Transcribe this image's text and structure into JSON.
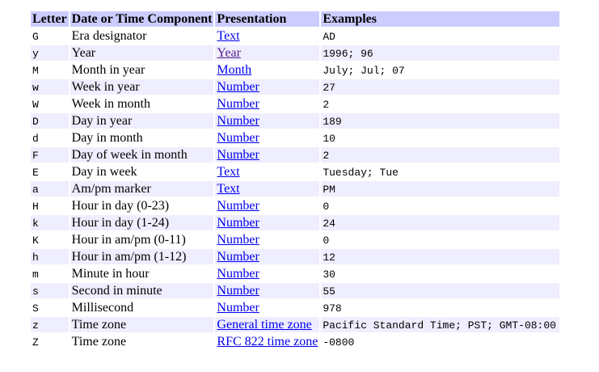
{
  "colors": {
    "header_bg": "#ccccff",
    "stripe_bg": "#eeeeff",
    "link": "#0000ee",
    "visited_link": "#551a8b",
    "text": "#000000",
    "page_bg": "#ffffff"
  },
  "table": {
    "columns": [
      "Letter",
      "Date or Time Component",
      "Presentation",
      "Examples"
    ],
    "rows": [
      {
        "letter": "G",
        "component": "Era designator",
        "presentation": "Text",
        "examples": "AD",
        "visited": false
      },
      {
        "letter": "y",
        "component": "Year",
        "presentation": "Year",
        "examples": "1996; 96",
        "visited": true
      },
      {
        "letter": "M",
        "component": "Month in year",
        "presentation": "Month",
        "examples": "July; Jul; 07",
        "visited": false
      },
      {
        "letter": "w",
        "component": "Week in year",
        "presentation": "Number",
        "examples": "27",
        "visited": false
      },
      {
        "letter": "W",
        "component": "Week in month",
        "presentation": "Number",
        "examples": "2",
        "visited": false
      },
      {
        "letter": "D",
        "component": "Day in year",
        "presentation": "Number",
        "examples": "189",
        "visited": false
      },
      {
        "letter": "d",
        "component": "Day in month",
        "presentation": "Number",
        "examples": "10",
        "visited": false
      },
      {
        "letter": "F",
        "component": "Day of week in month",
        "presentation": "Number",
        "examples": "2",
        "visited": false
      },
      {
        "letter": "E",
        "component": "Day in week",
        "presentation": "Text",
        "examples": "Tuesday; Tue",
        "visited": false
      },
      {
        "letter": "a",
        "component": "Am/pm marker",
        "presentation": "Text",
        "examples": "PM",
        "visited": false
      },
      {
        "letter": "H",
        "component": "Hour in day (0-23)",
        "presentation": "Number",
        "examples": "0",
        "visited": false
      },
      {
        "letter": "k",
        "component": "Hour in day (1-24)",
        "presentation": "Number",
        "examples": "24",
        "visited": false
      },
      {
        "letter": "K",
        "component": "Hour in am/pm (0-11)",
        "presentation": "Number",
        "examples": "0",
        "visited": false
      },
      {
        "letter": "h",
        "component": "Hour in am/pm (1-12)",
        "presentation": "Number",
        "examples": "12",
        "visited": false
      },
      {
        "letter": "m",
        "component": "Minute in hour",
        "presentation": "Number",
        "examples": "30",
        "visited": false
      },
      {
        "letter": "s",
        "component": "Second in minute",
        "presentation": "Number",
        "examples": "55",
        "visited": false
      },
      {
        "letter": "S",
        "component": "Millisecond",
        "presentation": "Number",
        "examples": "978",
        "visited": false
      },
      {
        "letter": "z",
        "component": "Time zone",
        "presentation": "General time zone",
        "examples": "Pacific Standard Time; PST; GMT-08:00",
        "visited": false
      },
      {
        "letter": "Z",
        "component": "Time zone",
        "presentation": "RFC 822 time zone",
        "examples": "-0800",
        "visited": false
      }
    ]
  }
}
